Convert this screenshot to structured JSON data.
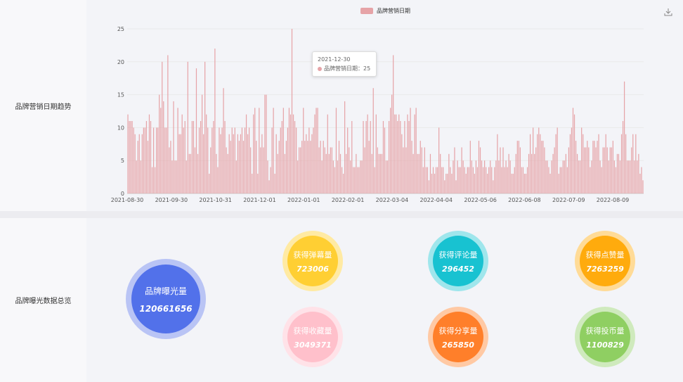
{
  "trend_section": {
    "label": "品牌营销日期趋势",
    "legend": "品牌营销日期",
    "tooltip": {
      "date": "2021-12-30",
      "series": "品牌营销日期",
      "value": "25"
    }
  },
  "summary_section": {
    "label": "品牌曝光数据总览",
    "metrics": [
      {
        "label": "品牌曝光量",
        "value": "120661656",
        "color": "#5271ea",
        "ring": "#b9c4f5"
      },
      {
        "label": "获得弹幕量",
        "value": "723006",
        "color": "#ffcf33",
        "ring": "#ffeaa3"
      },
      {
        "label": "获得评论量",
        "value": "296452",
        "color": "#18c2d1",
        "ring": "#9fe6ec"
      },
      {
        "label": "获得点赞量",
        "value": "7263259",
        "color": "#ffab0d",
        "ring": "#ffdb97"
      },
      {
        "label": "获得收藏量",
        "value": "3049371",
        "color": "#ffc0cb",
        "ring": "#ffe2e8"
      },
      {
        "label": "获得分享量",
        "value": "265850",
        "color": "#ff7f2a",
        "ring": "#ffc9a4"
      },
      {
        "label": "获得投币量",
        "value": "1100829",
        "color": "#8fcf62",
        "ring": "#cfeabd"
      }
    ]
  },
  "chart_data": {
    "type": "bar",
    "series": [
      {
        "name": "品牌营销日期"
      }
    ],
    "x_tick_labels": [
      "2021-08-30",
      "2021-09-30",
      "2021-10-31",
      "2021-12-01",
      "2022-01-01",
      "2022-02-01",
      "2022-03-04",
      "2022-04-04",
      "2022-05-06",
      "2022-06-08",
      "2022-07-09",
      "2022-08-09"
    ],
    "y_ticks": [
      0,
      5,
      10,
      15,
      20,
      25
    ],
    "ylim": [
      0,
      25
    ],
    "color": "#e6a3a7",
    "values": [
      12,
      11,
      11,
      11,
      10,
      9,
      5,
      8,
      9,
      5,
      9,
      10,
      10,
      11,
      8,
      12,
      11,
      4,
      10,
      4,
      10,
      10,
      15,
      13,
      20,
      14,
      10,
      10,
      21,
      7,
      8,
      5,
      14,
      5,
      5,
      13,
      9,
      9,
      12,
      10,
      11,
      5,
      20,
      6,
      6,
      11,
      11,
      7,
      19,
      6,
      10,
      11,
      15,
      9,
      20,
      12,
      10,
      3,
      7,
      10,
      11,
      22,
      6,
      4,
      10,
      9,
      10,
      16,
      11,
      7,
      6,
      9,
      8,
      10,
      9,
      10,
      5,
      9,
      8,
      9,
      10,
      8,
      10,
      12,
      9,
      10,
      7,
      3,
      12,
      13,
      8,
      3,
      13,
      7,
      9,
      7,
      15,
      15,
      5,
      2,
      4,
      10,
      13,
      3,
      9,
      6,
      8,
      10,
      11,
      13,
      6,
      8,
      10,
      13,
      12,
      25,
      12,
      11,
      10,
      5,
      7,
      7,
      8,
      13,
      8,
      9,
      8,
      10,
      8,
      9,
      10,
      12,
      13,
      13,
      7,
      8,
      5,
      8,
      7,
      6,
      12,
      6,
      7,
      7,
      5,
      4,
      13,
      5,
      8,
      6,
      4,
      3,
      14,
      6,
      10,
      7,
      5,
      11,
      4,
      4,
      6,
      4,
      4,
      5,
      5,
      11,
      7,
      11,
      12,
      8,
      11,
      6,
      16,
      4,
      12,
      7,
      6,
      6,
      6,
      11,
      10,
      5,
      5,
      11,
      13,
      15,
      21,
      12,
      12,
      11,
      12,
      11,
      9,
      7,
      11,
      7,
      12,
      11,
      13,
      8,
      6,
      12,
      13,
      6,
      6,
      8,
      7,
      4,
      7,
      4,
      4,
      2,
      6,
      3,
      4,
      3,
      4,
      4,
      10,
      6,
      4,
      4,
      2,
      3,
      3,
      6,
      4,
      3,
      5,
      7,
      2,
      5,
      4,
      4,
      7,
      5,
      4,
      3,
      4,
      4,
      8,
      5,
      4,
      3,
      5,
      4,
      8,
      7,
      5,
      4,
      5,
      4,
      3,
      4,
      5,
      4,
      2,
      4,
      5,
      9,
      5,
      7,
      4,
      7,
      4,
      5,
      4,
      6,
      5,
      3,
      3,
      4,
      6,
      8,
      8,
      7,
      4,
      4,
      3,
      3,
      4,
      6,
      9,
      6,
      10,
      6,
      7,
      9,
      10,
      9,
      8,
      8,
      7,
      5,
      5,
      4,
      3,
      5,
      6,
      7,
      9,
      10,
      3,
      4,
      4,
      5,
      5,
      6,
      4,
      7,
      9,
      10,
      13,
      12,
      8,
      6,
      5,
      5,
      10,
      9,
      7,
      7,
      8,
      7,
      4,
      5,
      8,
      8,
      7,
      8,
      9,
      5,
      4,
      7,
      7,
      9,
      7,
      5,
      7,
      7,
      8,
      5,
      4,
      6,
      6,
      5,
      9,
      11,
      17,
      9,
      5,
      5,
      5,
      7,
      9,
      5,
      9,
      5,
      6,
      3,
      4,
      2
    ],
    "values_note_removed": true
  }
}
